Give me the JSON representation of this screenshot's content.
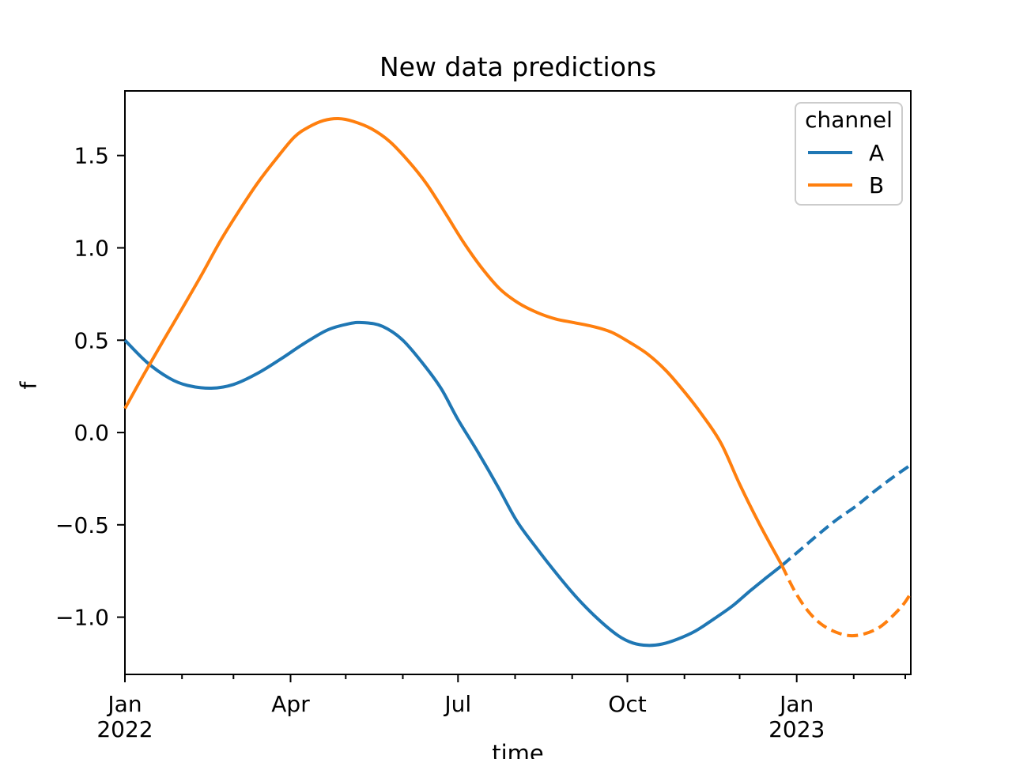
{
  "figure": {
    "background": "#ffffff",
    "text_color": "#000000"
  },
  "chart_data": {
    "type": "line",
    "title": "New data predictions",
    "xlabel": "time",
    "ylabel": "f",
    "x_unit": "days since 2022-01-01",
    "xlim": [
      0,
      427
    ],
    "ylim": [
      -1.31,
      1.85
    ],
    "grid": false,
    "y_ticks": [
      1.5,
      1.0,
      0.5,
      0.0,
      -0.5,
      -1.0
    ],
    "x_major_ticks": [
      {
        "d": 0,
        "label": "Jan",
        "sublabel": "2022"
      },
      {
        "d": 90,
        "label": "Apr"
      },
      {
        "d": 181,
        "label": "Jul"
      },
      {
        "d": 273,
        "label": "Oct"
      },
      {
        "d": 365,
        "label": "Jan",
        "sublabel": "2023"
      }
    ],
    "x_minor_ticks": [
      31,
      59,
      120,
      151,
      212,
      243,
      304,
      334,
      396,
      424
    ],
    "legend": {
      "title": "channel",
      "position": "upper right",
      "entries": [
        {
          "name": "A",
          "color": "#1f77b4"
        },
        {
          "name": "B",
          "color": "#ff7f0e"
        }
      ]
    },
    "series": [
      {
        "id": "A-observed",
        "channel": "A",
        "segment": "observed",
        "color": "#1f77b4",
        "style": "solid",
        "points": [
          [
            0,
            0.5
          ],
          [
            12,
            0.38
          ],
          [
            24,
            0.295
          ],
          [
            34,
            0.255
          ],
          [
            47,
            0.24
          ],
          [
            59,
            0.26
          ],
          [
            72,
            0.32
          ],
          [
            85,
            0.4
          ],
          [
            97,
            0.48
          ],
          [
            110,
            0.555
          ],
          [
            122,
            0.59
          ],
          [
            130,
            0.595
          ],
          [
            140,
            0.575
          ],
          [
            151,
            0.5
          ],
          [
            163,
            0.36
          ],
          [
            172,
            0.235
          ],
          [
            181,
            0.07
          ],
          [
            192,
            -0.11
          ],
          [
            203,
            -0.3
          ],
          [
            213,
            -0.48
          ],
          [
            224,
            -0.63
          ],
          [
            235,
            -0.77
          ],
          [
            246,
            -0.9
          ],
          [
            257,
            -1.01
          ],
          [
            268,
            -1.1
          ],
          [
            276,
            -1.14
          ],
          [
            284,
            -1.153
          ],
          [
            292,
            -1.145
          ],
          [
            300,
            -1.12
          ],
          [
            310,
            -1.075
          ],
          [
            320,
            -1.01
          ],
          [
            330,
            -0.94
          ],
          [
            340,
            -0.855
          ],
          [
            348,
            -0.79
          ],
          [
            357,
            -0.72
          ]
        ]
      },
      {
        "id": "A-forecast",
        "channel": "A",
        "segment": "forecast",
        "color": "#1f77b4",
        "style": "dashed",
        "points": [
          [
            357,
            -0.72
          ],
          [
            367,
            -0.635
          ],
          [
            377,
            -0.55
          ],
          [
            387,
            -0.47
          ],
          [
            397,
            -0.4
          ],
          [
            407,
            -0.32
          ],
          [
            417,
            -0.245
          ],
          [
            427,
            -0.175
          ]
        ]
      },
      {
        "id": "B-observed",
        "channel": "B",
        "segment": "observed",
        "color": "#ff7f0e",
        "style": "solid",
        "points": [
          [
            0,
            0.13
          ],
          [
            10,
            0.31
          ],
          [
            21,
            0.5
          ],
          [
            31,
            0.67
          ],
          [
            42,
            0.86
          ],
          [
            52,
            1.04
          ],
          [
            62,
            1.2
          ],
          [
            72,
            1.35
          ],
          [
            82,
            1.48
          ],
          [
            92,
            1.6
          ],
          [
            100,
            1.655
          ],
          [
            108,
            1.69
          ],
          [
            116,
            1.7
          ],
          [
            124,
            1.685
          ],
          [
            134,
            1.645
          ],
          [
            144,
            1.575
          ],
          [
            154,
            1.47
          ],
          [
            164,
            1.345
          ],
          [
            174,
            1.19
          ],
          [
            184,
            1.03
          ],
          [
            194,
            0.89
          ],
          [
            204,
            0.775
          ],
          [
            214,
            0.7
          ],
          [
            224,
            0.65
          ],
          [
            234,
            0.615
          ],
          [
            244,
            0.595
          ],
          [
            254,
            0.575
          ],
          [
            264,
            0.545
          ],
          [
            274,
            0.49
          ],
          [
            284,
            0.425
          ],
          [
            294,
            0.335
          ],
          [
            304,
            0.22
          ],
          [
            314,
            0.09
          ],
          [
            324,
            -0.06
          ],
          [
            334,
            -0.28
          ],
          [
            345,
            -0.5
          ],
          [
            357,
            -0.72
          ]
        ]
      },
      {
        "id": "B-forecast",
        "channel": "B",
        "segment": "forecast",
        "color": "#ff7f0e",
        "style": "dashed",
        "points": [
          [
            357,
            -0.72
          ],
          [
            364,
            -0.86
          ],
          [
            371,
            -0.965
          ],
          [
            378,
            -1.035
          ],
          [
            386,
            -1.08
          ],
          [
            394,
            -1.1
          ],
          [
            402,
            -1.09
          ],
          [
            410,
            -1.055
          ],
          [
            417,
            -0.995
          ],
          [
            423,
            -0.93
          ],
          [
            427,
            -0.87
          ]
        ]
      }
    ]
  }
}
